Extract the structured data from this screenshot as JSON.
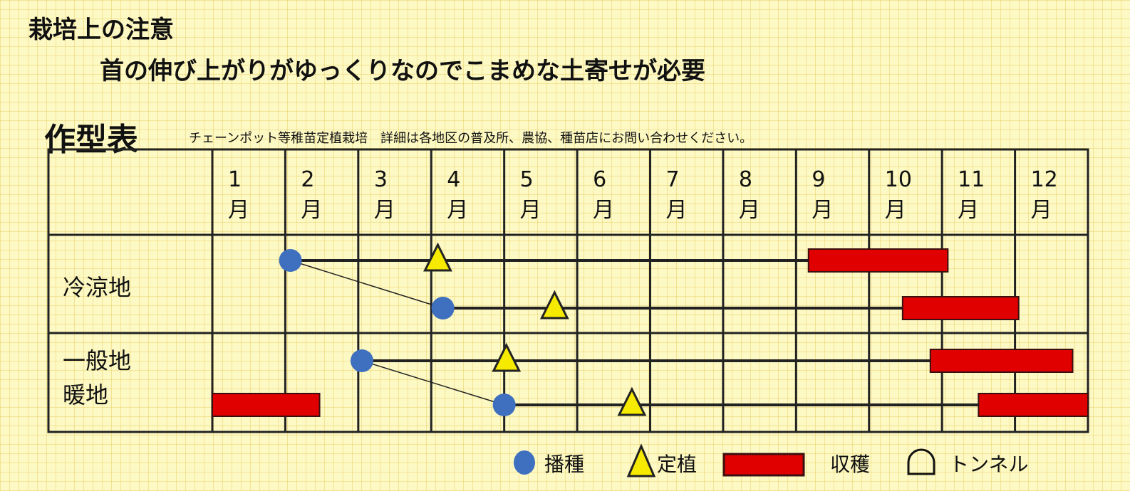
{
  "heading": "栽培上の注意",
  "caution": "首の伸び上がりがゆっくりなのでこまめな土寄せが必要",
  "table_title": "作型表",
  "table_note": "チェーンポット等稚苗定植栽培　詳細は各地区の普及所、農協、種苗店にお問い合わせください。",
  "months": [
    "1",
    "2",
    "3",
    "4",
    "5",
    "6",
    "7",
    "8",
    "9",
    "10",
    "11",
    "12"
  ],
  "month_suffix": "月",
  "regions": [
    {
      "label": "冷涼地"
    },
    {
      "label": "一般地"
    },
    {
      "label": "暖地"
    }
  ],
  "colors": {
    "sowing": "#3f6fbf",
    "planting": "#f5ea00",
    "harvest": "#e00000",
    "background": "#fdf9c4"
  },
  "schedule_unit": "month position (1.0 = start of January, 13.0 = end of December)",
  "schedule": [
    {
      "group": "冷涼地",
      "sowing": 2.07,
      "planting": 4.09,
      "harvest": [
        [
          9.17,
          11.08
        ]
      ]
    },
    {
      "group": "冷涼地",
      "sowing": 4.16,
      "planting": 5.69,
      "harvest": [
        [
          10.46,
          12.05
        ]
      ]
    },
    {
      "group": "一般地・暖地",
      "sowing": 3.05,
      "planting": 5.03,
      "harvest": [
        [
          10.84,
          12.79
        ]
      ]
    },
    {
      "group": "一般地・暖地",
      "sowing": 5.0,
      "planting": 6.75,
      "harvest": [
        [
          11.5,
          13.0
        ],
        [
          1.0,
          2.47
        ]
      ]
    }
  ],
  "sowing_links": [
    [
      0,
      1
    ],
    [
      2,
      3
    ]
  ],
  "legend": [
    {
      "icon": "circle-icon",
      "label": "播種"
    },
    {
      "icon": "triangle-icon",
      "label": "定植"
    },
    {
      "icon": "red-bar-icon",
      "label": "収穫"
    },
    {
      "icon": "tunnel-icon",
      "label": "トンネル"
    }
  ]
}
